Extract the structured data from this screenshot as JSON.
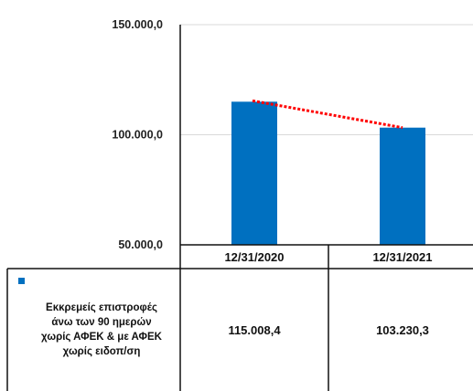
{
  "chart_data": {
    "type": "bar",
    "categories": [
      "12/31/2020",
      "12/31/2021"
    ],
    "series": [
      {
        "name": "Εκκρεμείς επιστροφές άνω των 90 ημερών χωρίς ΑΦΕΚ & με ΑΦΕΚ χωρίς ειδοπ/ση",
        "values": [
          115008.4,
          103230.3
        ],
        "value_labels": [
          "115.008,4",
          "103.230,3"
        ],
        "color": "#0070c0"
      }
    ],
    "trendline": {
      "type": "linear",
      "style": "dotted",
      "color": "#ff0000"
    },
    "ylim": [
      50000,
      150000
    ],
    "yticks": [
      50000,
      100000,
      150000
    ],
    "ytick_labels": [
      "50.000,0",
      "100.000,0",
      "150.000,0"
    ],
    "grid": true,
    "data_table": true
  }
}
